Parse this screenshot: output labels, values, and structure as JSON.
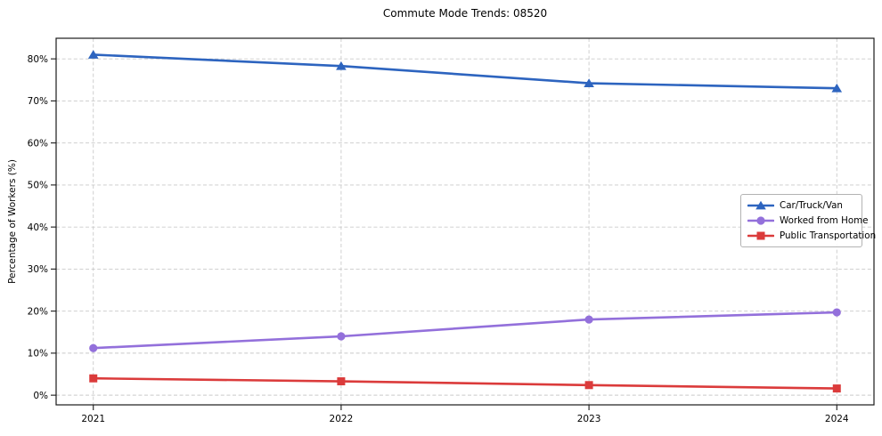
{
  "chart_data": {
    "type": "line",
    "title": "Commute Mode Trends: 08520",
    "xlabel": "",
    "ylabel": "Percentage of Workers (%)",
    "x": [
      2021,
      2022,
      2023,
      2024
    ],
    "categories": [
      "2021",
      "2022",
      "2023",
      "2024"
    ],
    "series": [
      {
        "name": "Car/Truck/Van",
        "marker": "triangle",
        "color": "#2d64bf",
        "values": [
          81.0,
          78.3,
          74.2,
          73.0
        ]
      },
      {
        "name": "Worked from Home",
        "marker": "circle",
        "color": "#9370db",
        "values": [
          11.2,
          14.0,
          18.0,
          19.7
        ]
      },
      {
        "name": "Public Transportation",
        "marker": "square",
        "color": "#db3b3b",
        "values": [
          4.0,
          3.3,
          2.4,
          1.6
        ]
      }
    ],
    "yticks": {
      "values": [
        0,
        10,
        20,
        30,
        40,
        50,
        60,
        70,
        80
      ],
      "labels": [
        "0%",
        "10%",
        "20%",
        "30%",
        "40%",
        "50%",
        "60%",
        "70%",
        "80%"
      ]
    },
    "ylim": [
      -2.3,
      84.9
    ],
    "xlim": [
      2020.85,
      2024.15
    ],
    "grid": true,
    "grid_style": "dashed",
    "legend_position": "middle-right",
    "colors": {
      "grid": "#c9c9c9",
      "spine": "#1a1a1a",
      "text": "#000000"
    }
  }
}
